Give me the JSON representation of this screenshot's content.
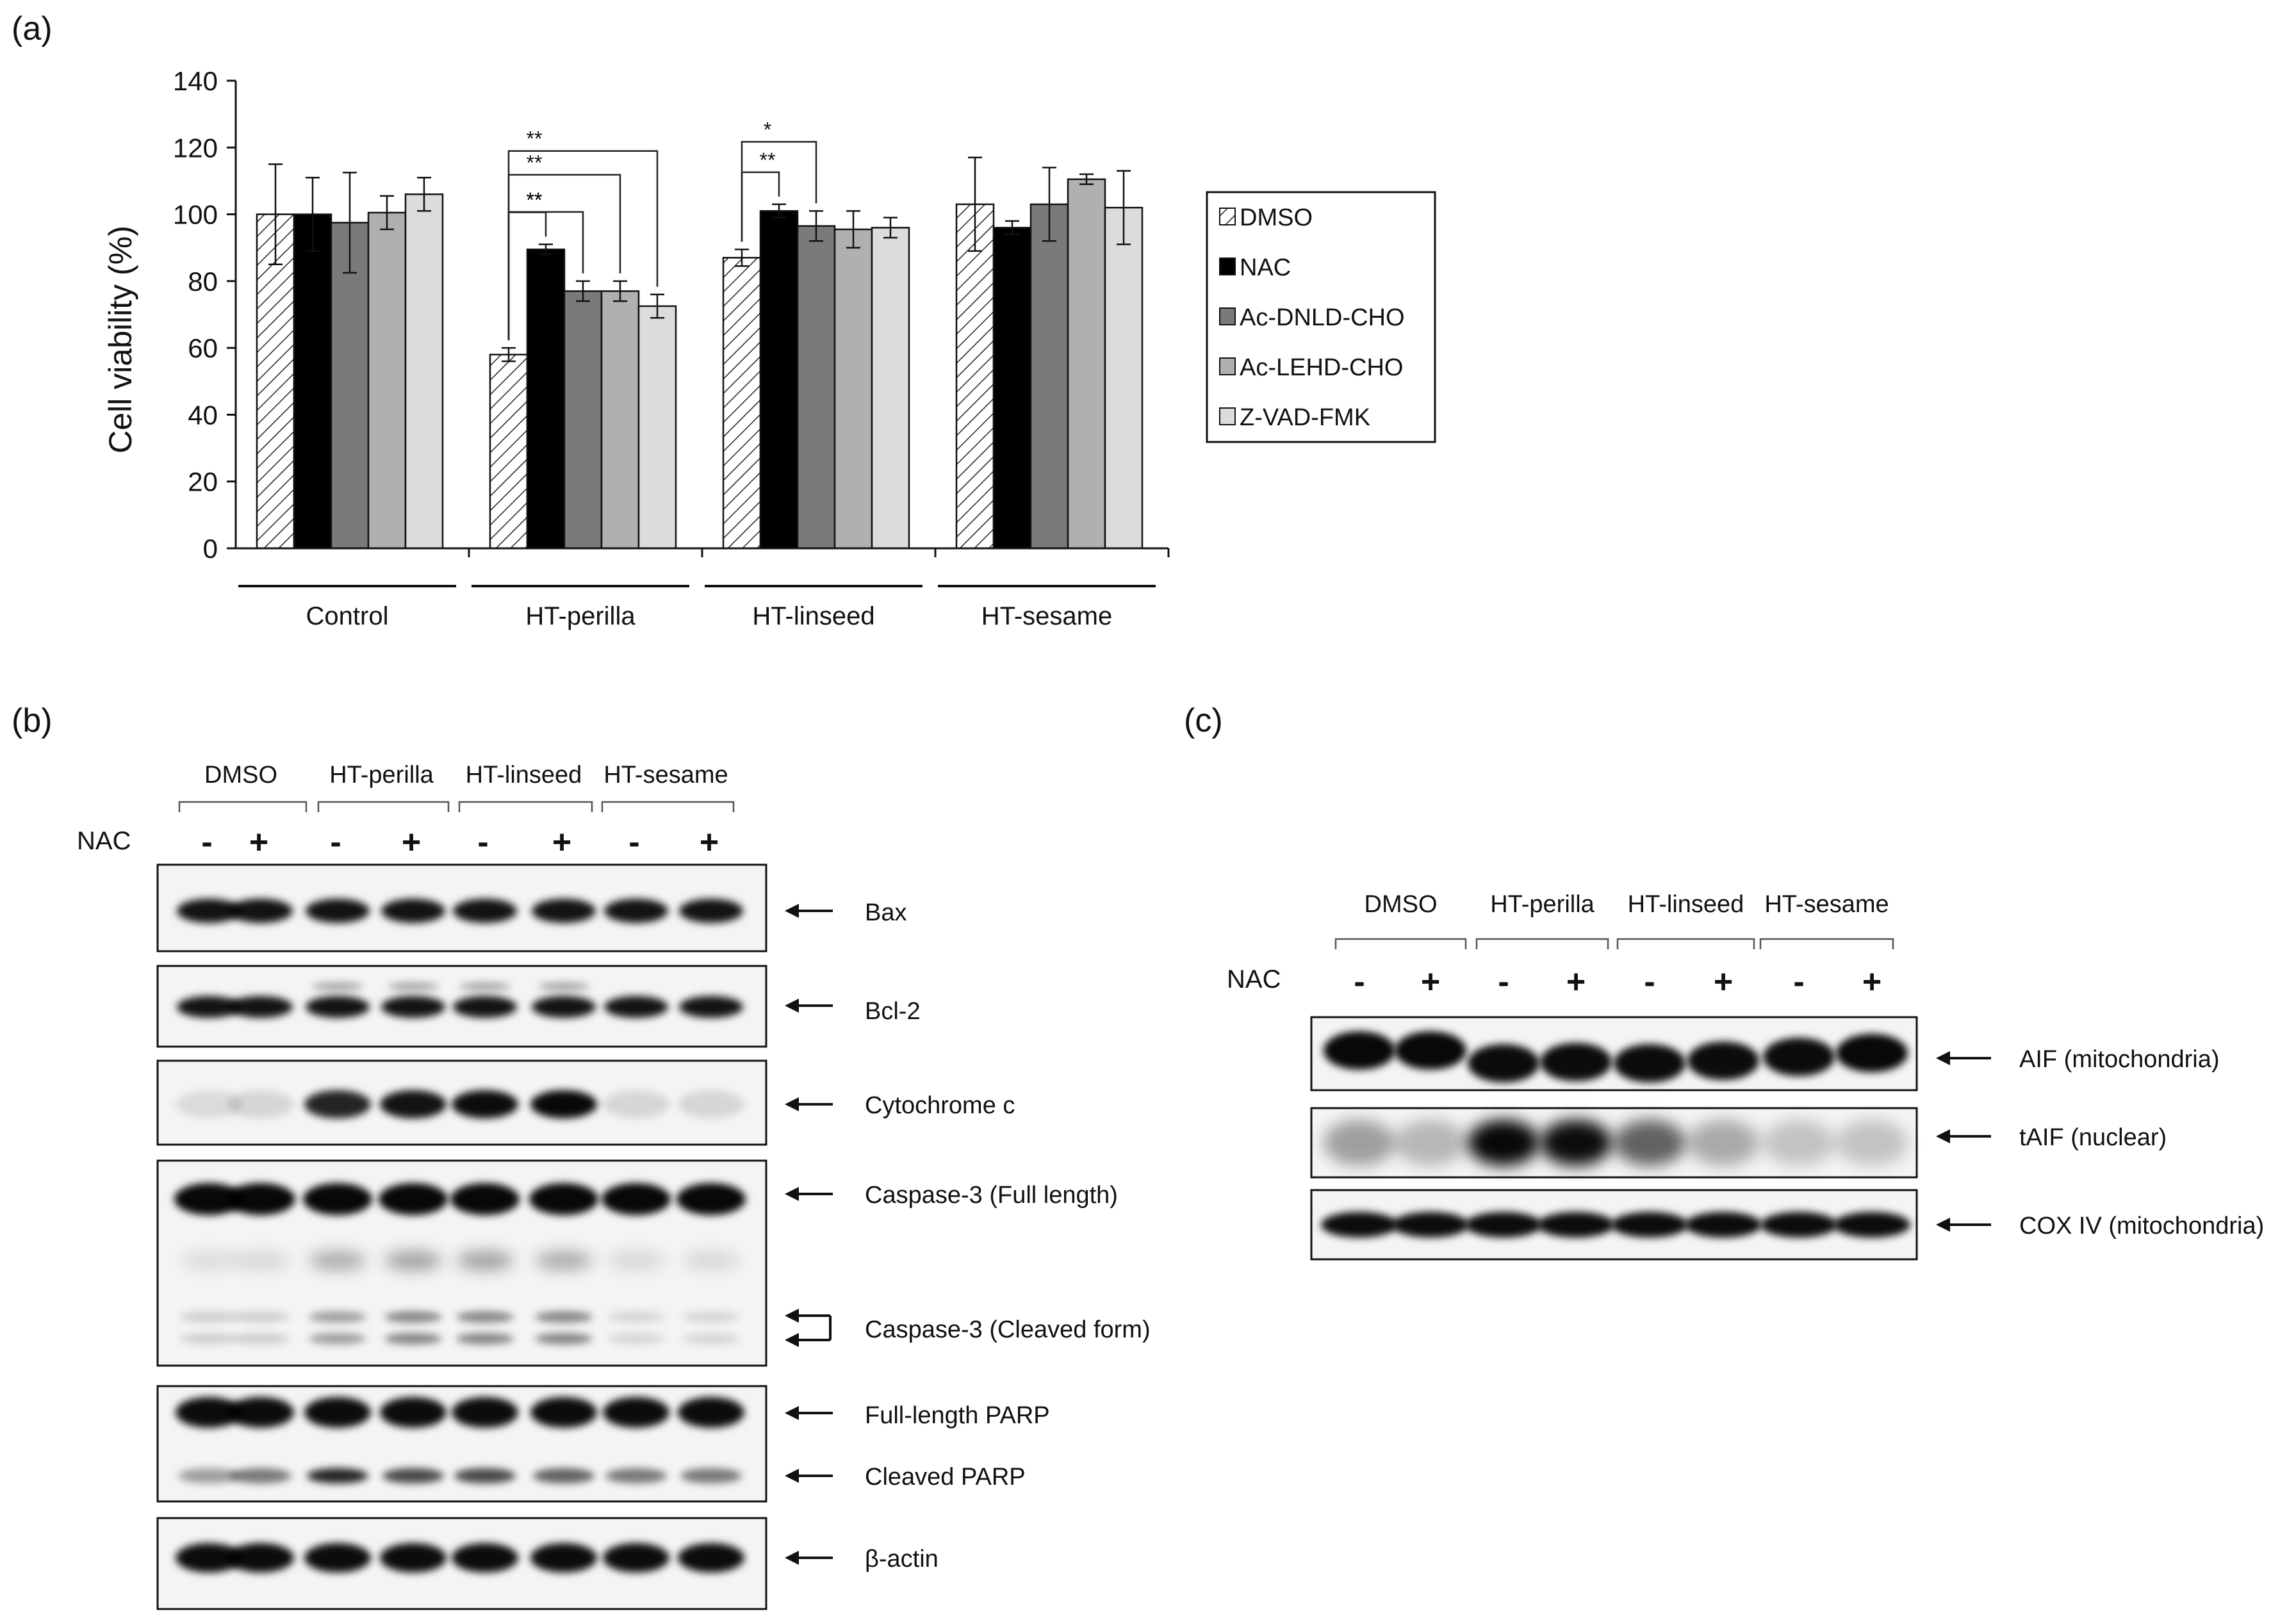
{
  "panel_labels": {
    "a": "(a)",
    "b": "(b)",
    "c": "(c)"
  },
  "colors": {
    "DMSO": "#ffffff",
    "NAC": "#000000",
    "Ac-DNLD-CHO": "#7a7a7a",
    "Ac-LEHD-CHO": "#b0b0b0",
    "Z-VAD-FMK": "#dcdcdc"
  },
  "chart_data": {
    "type": "bar",
    "title": "",
    "xlabel": "",
    "ylabel": "Cell viability (%)",
    "ylim": [
      0,
      140
    ],
    "yticks": [
      0,
      20,
      40,
      60,
      80,
      100,
      120,
      140
    ],
    "categories": [
      "Control",
      "HT-perilla",
      "HT-linseed",
      "HT-sesame"
    ],
    "legend_position": "right",
    "series": [
      {
        "name": "DMSO",
        "values": [
          100,
          58,
          87,
          103
        ],
        "errors": [
          15,
          2,
          2.5,
          14
        ],
        "pattern": "hatched"
      },
      {
        "name": "NAC",
        "values": [
          100,
          89.5,
          101,
          96
        ],
        "errors": [
          11,
          1.5,
          2,
          2
        ]
      },
      {
        "name": "Ac-DNLD-CHO",
        "values": [
          97.5,
          77,
          96.5,
          103
        ],
        "errors": [
          15,
          3,
          4.5,
          11
        ]
      },
      {
        "name": "Ac-LEHD-CHO",
        "values": [
          100.5,
          77,
          95.5,
          110.5
        ],
        "errors": [
          5,
          3,
          5.5,
          1.5
        ]
      },
      {
        "name": "Z-VAD-FMK",
        "values": [
          106,
          72.5,
          96,
          102
        ],
        "errors": [
          5,
          3.5,
          3,
          11
        ]
      }
    ],
    "significance": [
      {
        "group": "HT-perilla",
        "from": "DMSO",
        "to": "NAC",
        "label": "**"
      },
      {
        "group": "HT-perilla",
        "from": "DMSO",
        "to": "Ac-DNLD-CHO",
        "label": "**"
      },
      {
        "group": "HT-perilla",
        "from": "DMSO",
        "to": "Ac-LEHD-CHO",
        "label": "**"
      },
      {
        "group": "HT-perilla",
        "from": "DMSO",
        "to": "Z-VAD-FMK",
        "label": "**"
      },
      {
        "group": "HT-linseed",
        "from": "DMSO",
        "to": "NAC",
        "label": "**"
      },
      {
        "group": "HT-linseed",
        "from": "DMSO",
        "to": "Ac-DNLD-CHO",
        "label": "*"
      }
    ]
  },
  "blot_b": {
    "groups": [
      "DMSO",
      "HT-perilla",
      "HT-linseed",
      "HT-sesame"
    ],
    "nac_label": "NAC",
    "signs": [
      "-",
      "+",
      "-",
      "+",
      "-",
      "+",
      "-",
      "+"
    ],
    "labels": {
      "bax": "Bax",
      "bcl2": "Bcl-2",
      "cytc": "Cytochrome c",
      "casp3_full": "Caspase-3 (Full length)",
      "casp3_cleaved": "Caspase-3 (Cleaved form)",
      "parp_full": "Full-length PARP",
      "parp_cleaved": "Cleaved PARP",
      "actin": "β-actin"
    }
  },
  "blot_c": {
    "groups": [
      "DMSO",
      "HT-perilla",
      "HT-linseed",
      "HT-sesame"
    ],
    "nac_label": "NAC",
    "signs": [
      "-",
      "+",
      "-",
      "+",
      "-",
      "+",
      "-",
      "+"
    ],
    "labels": {
      "aif_mito": "AIF (mitochondria)",
      "taif": "tAIF (nuclear)",
      "cox4": "COX IV (mitochondria)"
    }
  }
}
